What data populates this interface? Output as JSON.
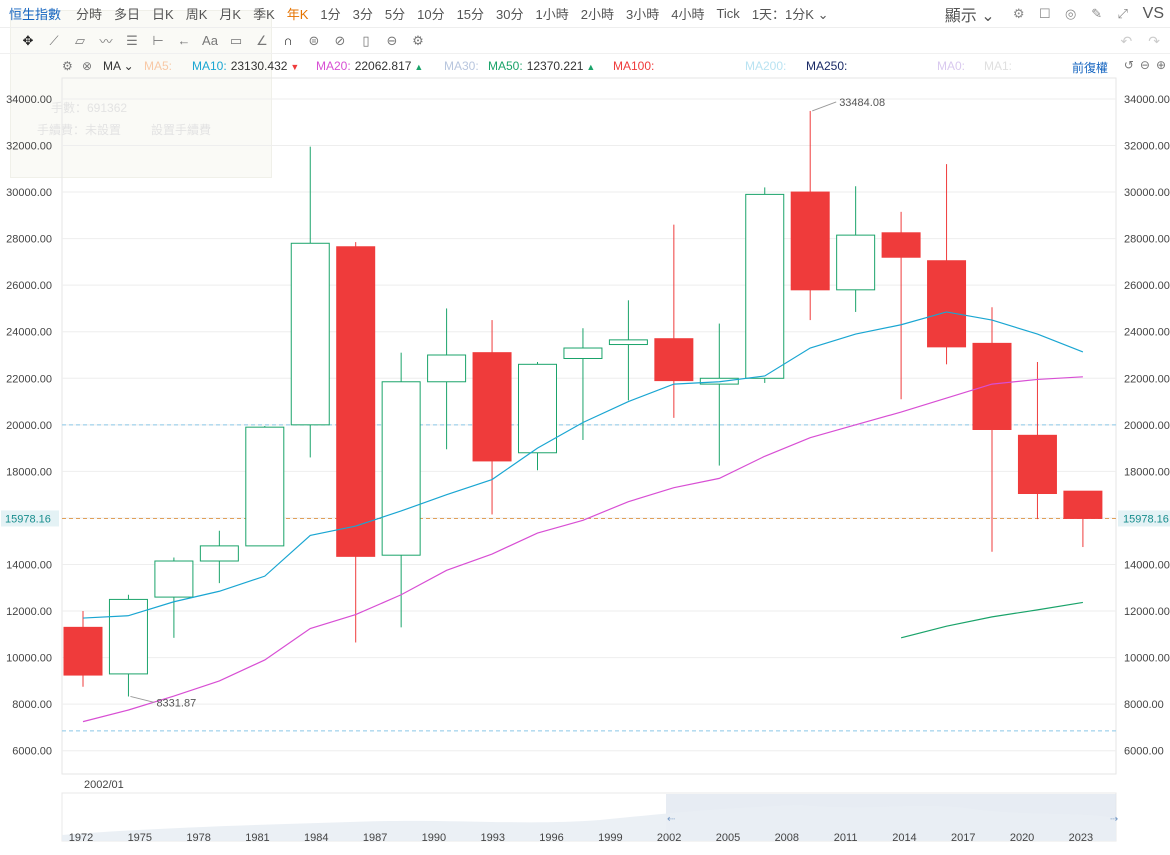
{
  "header": {
    "symbol": "恒生指數",
    "timeframes": [
      {
        "label": "分時",
        "active": false
      },
      {
        "label": "多日",
        "active": false
      },
      {
        "label": "日K",
        "active": false
      },
      {
        "label": "周K",
        "active": false
      },
      {
        "label": "月K",
        "active": false
      },
      {
        "label": "季K",
        "active": false
      },
      {
        "label": "年K",
        "active": true
      },
      {
        "label": "1分",
        "active": false
      },
      {
        "label": "3分",
        "active": false
      },
      {
        "label": "5分",
        "active": false
      },
      {
        "label": "10分",
        "active": false
      },
      {
        "label": "15分",
        "active": false
      },
      {
        "label": "30分",
        "active": false
      },
      {
        "label": "1小時",
        "active": false
      },
      {
        "label": "2小時",
        "active": false
      },
      {
        "label": "3小時",
        "active": false
      },
      {
        "label": "4小時",
        "active": false
      },
      {
        "label": "Tick",
        "active": false
      }
    ],
    "interval_select": "1天：1分K",
    "display_label": "顯示",
    "vs_label": "VS"
  },
  "ma_bar": {
    "ma_select": "MA",
    "items": [
      {
        "label": "MA5:",
        "value": "",
        "color": "#f8c9a6",
        "arrow": ""
      },
      {
        "label": "MA10:",
        "value": "23130.432",
        "color": "#1aa6d2",
        "arrow": "down"
      },
      {
        "label": "MA20:",
        "value": "22062.817",
        "color": "#d84fd4",
        "arrow": "up"
      },
      {
        "label": "MA30:",
        "value": "",
        "color": "#b8c6de",
        "arrow": ""
      },
      {
        "label": "MA50:",
        "value": "12370.221",
        "color": "#1aa36a",
        "arrow": "up"
      },
      {
        "label": "MA100:",
        "value": "",
        "color": "#ef3b3b",
        "arrow": ""
      },
      {
        "label": "MA200:",
        "value": "",
        "color": "#b9e3f2",
        "arrow": ""
      },
      {
        "label": "MA250:",
        "value": "",
        "color": "#1a2a66",
        "arrow": ""
      },
      {
        "label": "MA0:",
        "value": "",
        "color": "#d9c9ef",
        "arrow": ""
      },
      {
        "label": "MA1:",
        "value": "",
        "color": "#e0e0e0",
        "arrow": ""
      }
    ],
    "adjust_label": "前復權"
  },
  "ghost_panel": {
    "line1": "手數：691362",
    "line2": "手續費：未設置",
    "line3": "設置手續費"
  },
  "chart_data": {
    "type": "candlestick",
    "y_ticks": [
      6000,
      8000,
      10000,
      12000,
      14000,
      16000,
      18000,
      20000,
      22000,
      24000,
      26000,
      28000,
      30000,
      32000,
      34000
    ],
    "y_tick_labels": [
      "6000.00",
      "8000.00",
      "10000.00",
      "12000.00",
      "14000.00",
      "16000.00",
      "18000.00",
      "20000.00",
      "22000.00",
      "24000.00",
      "26000.00",
      "28000.00",
      "30000.00",
      "32000.00",
      "34000.00"
    ],
    "ylim": [
      5000,
      34900
    ],
    "x_labels": [
      "1972",
      "1975",
      "1978",
      "1981",
      "1984",
      "1987",
      "1990",
      "1993",
      "1996",
      "1999",
      "2002",
      "2005",
      "2008",
      "2011",
      "2014",
      "2017",
      "2020",
      "2023"
    ],
    "candles": [
      {
        "o": 11300,
        "h": 12000,
        "l": 8750,
        "c": 9250,
        "up": false
      },
      {
        "o": 9300,
        "h": 12700,
        "l": 8330,
        "c": 12500,
        "up": true
      },
      {
        "o": 12600,
        "h": 14300,
        "l": 10850,
        "c": 14150,
        "up": true
      },
      {
        "o": 14150,
        "h": 15450,
        "l": 13200,
        "c": 14800,
        "up": true
      },
      {
        "o": 14800,
        "h": 19950,
        "l": 14800,
        "c": 19900,
        "up": true
      },
      {
        "o": 20000,
        "h": 31950,
        "l": 18600,
        "c": 27800,
        "up": true
      },
      {
        "o": 27650,
        "h": 27850,
        "l": 10650,
        "c": 14350,
        "up": false
      },
      {
        "o": 14400,
        "h": 23100,
        "l": 11300,
        "c": 21850,
        "up": true
      },
      {
        "o": 21850,
        "h": 25000,
        "l": 18950,
        "c": 23000,
        "up": true
      },
      {
        "o": 23100,
        "h": 24500,
        "l": 16150,
        "c": 18450,
        "up": false
      },
      {
        "o": 18800,
        "h": 22700,
        "l": 18050,
        "c": 22600,
        "up": true
      },
      {
        "o": 22850,
        "h": 24150,
        "l": 19350,
        "c": 23300,
        "up": true
      },
      {
        "o": 23450,
        "h": 25350,
        "l": 21050,
        "c": 23650,
        "up": true
      },
      {
        "o": 23700,
        "h": 28600,
        "l": 20300,
        "c": 21900,
        "up": false
      },
      {
        "o": 21750,
        "h": 24350,
        "l": 18250,
        "c": 22000,
        "up": true
      },
      {
        "o": 22000,
        "h": 30200,
        "l": 21800,
        "c": 29900,
        "up": true
      },
      {
        "o": 30000,
        "h": 33484.08,
        "l": 24500,
        "c": 25800,
        "up": false
      },
      {
        "o": 25800,
        "h": 30250,
        "l": 24850,
        "c": 28150,
        "up": true
      },
      {
        "o": 28250,
        "h": 29150,
        "l": 21100,
        "c": 27200,
        "up": false
      },
      {
        "o": 27050,
        "h": 31200,
        "l": 22600,
        "c": 23350,
        "up": false
      },
      {
        "o": 23500,
        "h": 25050,
        "l": 14550,
        "c": 19800,
        "up": false
      },
      {
        "o": 19550,
        "h": 22700,
        "l": 15950,
        "c": 17050,
        "up": false
      },
      {
        "o": 17150,
        "h": 17150,
        "l": 14750,
        "c": 15978.16,
        "up": false
      }
    ],
    "series": [
      {
        "name": "MA10",
        "color": "#1aa6d2",
        "start": 0,
        "values": [
          11700,
          11800,
          12400,
          12850,
          13500,
          15250,
          15650,
          16300,
          17000,
          17650,
          19000,
          20100,
          21000,
          21750,
          21850,
          22100,
          23300,
          23900,
          24300,
          24850,
          24500,
          23900,
          23130.432
        ]
      },
      {
        "name": "MA20",
        "color": "#d84fd4",
        "start": 0,
        "values": [
          7250,
          7750,
          8350,
          9000,
          9900,
          11250,
          11850,
          12700,
          13750,
          14450,
          15350,
          15900,
          16700,
          17300,
          17700,
          18650,
          19450,
          20000,
          20550,
          21150,
          21750,
          21950,
          22062.817
        ]
      },
      {
        "name": "MA50",
        "color": "#1aa36a",
        "start": 18,
        "values": [
          10850,
          11350,
          11750,
          12050,
          12370.221
        ]
      }
    ],
    "annotations": [
      {
        "text": "33484.08",
        "candle": 16,
        "value": 33484.08,
        "side": "right"
      },
      {
        "text": "8331.87",
        "candle": 1,
        "value": 8331.87,
        "side": "right-below"
      }
    ],
    "last_price": 15978.16,
    "last_price_label": "15978.16",
    "ref_lines": [
      20000,
      6850
    ],
    "crosshair_date": "2002/01",
    "navigator_labels": [
      "1972",
      "1975",
      "1978",
      "1981",
      "1984",
      "1987",
      "1990",
      "1993",
      "1996",
      "1999",
      "2002",
      "2005",
      "2008",
      "2011",
      "2014",
      "2017",
      "2020",
      "2023"
    ],
    "colors": {
      "up": "#1aa36a",
      "down": "#ef3b3b",
      "grid": "#eeeeee",
      "ref": "#8ac8e8",
      "last": "#e0a05a"
    }
  }
}
